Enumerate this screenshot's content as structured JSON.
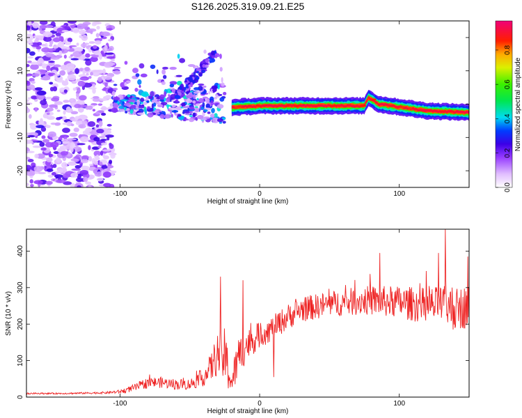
{
  "title": "S126.2025.319.09.21.E25",
  "chart_data": [
    {
      "type": "heatmap",
      "name": "spectrogram",
      "xlabel": "Height of straight line (km)",
      "ylabel": "Frequency (Hz)",
      "xlim": [
        -167,
        150
      ],
      "ylim": [
        -25,
        25
      ],
      "xticks": [
        -100,
        0,
        100
      ],
      "yticks": [
        -20,
        -10,
        0,
        10,
        20
      ],
      "colorbar": {
        "label": "Normalized spectral amplitude",
        "range": [
          0,
          0.97
        ],
        "ticks": [
          "0.0",
          "0.2",
          "0.4",
          "0.6",
          "0.8"
        ]
      },
      "features": [
        {
          "region": "noise",
          "x_range": [
            -167,
            -105
          ],
          "freq_range": [
            -25,
            25
          ],
          "amplitude": 0.15
        },
        {
          "region": "scattered",
          "x_range": [
            -105,
            -25
          ],
          "freq_range": [
            -8,
            16
          ],
          "amplitude": 0.3
        },
        {
          "region": "carrier",
          "x_range": [
            -20,
            150
          ],
          "freq_center": [
            [
              -20,
              -1
            ],
            [
              0,
              -0.5
            ],
            [
              75,
              -0.5
            ],
            [
              78,
              2
            ],
            [
              85,
              0
            ],
            [
              120,
              -2
            ],
            [
              150,
              -2.5
            ]
          ],
          "amplitude": 0.95
        }
      ]
    },
    {
      "type": "line",
      "name": "snr",
      "xlabel": "Height of straight line (km)",
      "ylabel": "SNR (10 * v/v)",
      "xlim": [
        -167,
        150
      ],
      "ylim": [
        0,
        460
      ],
      "xticks": [
        -100,
        0,
        100
      ],
      "yticks": [
        0,
        100,
        200,
        300,
        400
      ],
      "color": "#ee2222",
      "envelope_x": [
        -167,
        -140,
        -110,
        -100,
        -90,
        -80,
        -70,
        -60,
        -50,
        -40,
        -35,
        -30,
        -25,
        -20,
        -15,
        -10,
        0,
        10,
        20,
        30,
        50,
        75,
        100,
        120,
        130,
        140,
        150
      ],
      "envelope_y": [
        10,
        10,
        12,
        15,
        25,
        40,
        40,
        35,
        35,
        55,
        80,
        120,
        110,
        40,
        110,
        140,
        170,
        190,
        220,
        240,
        255,
        265,
        260,
        250,
        250,
        240,
        250
      ],
      "noise_amplitude": [
        2,
        2,
        3,
        5,
        10,
        15,
        15,
        15,
        15,
        25,
        40,
        60,
        80,
        40,
        60,
        45,
        35,
        35,
        35,
        35,
        35,
        40,
        45,
        50,
        55,
        60,
        60
      ],
      "spikes": [
        {
          "x": -28,
          "y": 330
        },
        {
          "x": -12,
          "y": 320
        },
        {
          "x": 86,
          "y": 395
        },
        {
          "x": 128,
          "y": 395
        },
        {
          "x": 133,
          "y": 460
        },
        {
          "x": 138,
          "y": 300
        },
        {
          "x": 149,
          "y": 385
        },
        {
          "x": 10,
          "y": 55
        }
      ]
    }
  ]
}
